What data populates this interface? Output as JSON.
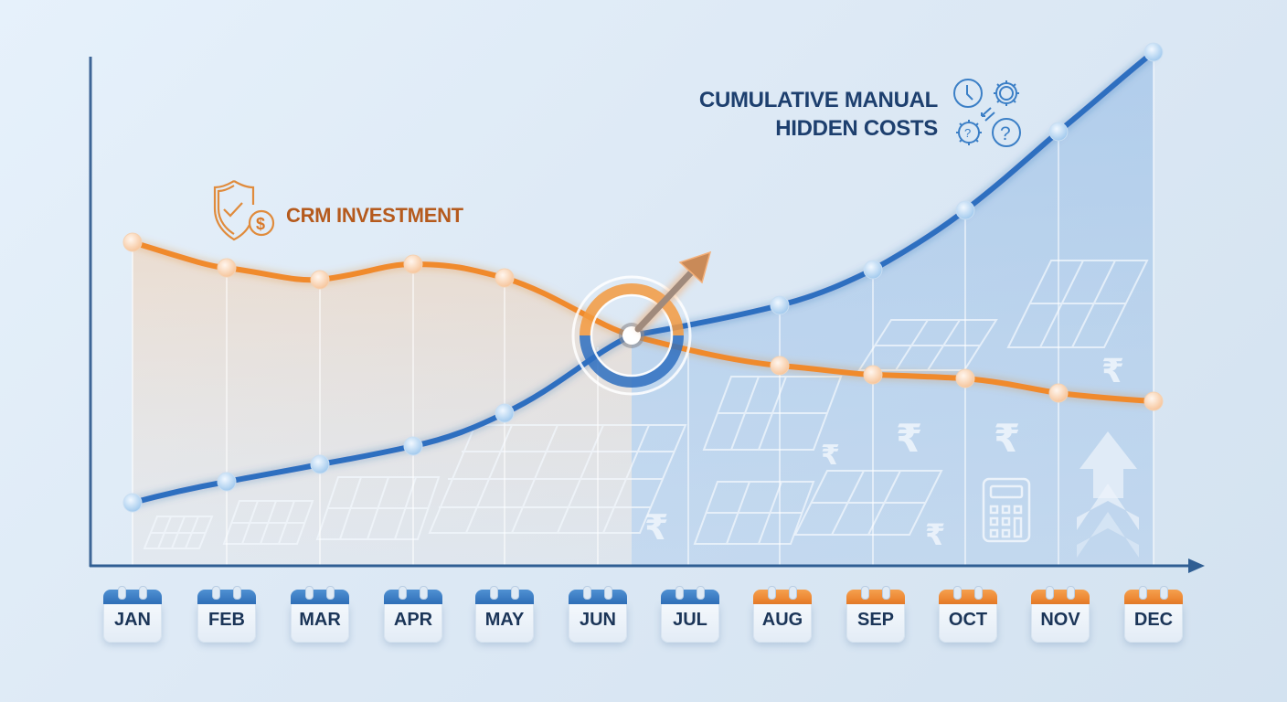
{
  "chart_data": {
    "type": "line",
    "title": "",
    "xlabel": "",
    "ylabel": "",
    "categories": [
      "JAN",
      "FEB",
      "MAR",
      "APR",
      "MAY",
      "JUN",
      "JUL",
      "AUG",
      "SEP",
      "OCT",
      "NOV",
      "DEC"
    ],
    "series": [
      {
        "name": "CRM INVESTMENT",
        "color": "#f08a2c",
        "values": [
          62,
          58,
          56,
          59,
          56,
          48,
          43,
          39,
          38,
          37,
          34,
          32
        ]
      },
      {
        "name": "CUMULATIVE MANUAL HIDDEN COSTS",
        "color": "#2e6fc0",
        "values": [
          12,
          16,
          19,
          23,
          30,
          37,
          45,
          50,
          57,
          70,
          86,
          102
        ]
      }
    ],
    "annotations": [
      "Break-even crossover between JUN and JUL marked with target rings and upward arrow"
    ],
    "grid": "vertical lines at each month",
    "legend_position": "inline labels",
    "ylim": [
      0,
      105
    ],
    "axis_ticks_y": "none"
  },
  "labels": {
    "hidden_costs_line1": "CUMULATIVE MANUAL",
    "hidden_costs_line2": "HIDDEN COSTS",
    "crm": "CRM INVESTMENT"
  },
  "months": [
    {
      "label": "JAN",
      "color": "blue"
    },
    {
      "label": "FEB",
      "color": "blue"
    },
    {
      "label": "MAR",
      "color": "blue"
    },
    {
      "label": "APR",
      "color": "blue"
    },
    {
      "label": "MAY",
      "color": "blue"
    },
    {
      "label": "JUN",
      "color": "blue"
    },
    {
      "label": "JUL",
      "color": "blue"
    },
    {
      "label": "AUG",
      "color": "orange"
    },
    {
      "label": "SEP",
      "color": "orange"
    },
    {
      "label": "OCT",
      "color": "orange"
    },
    {
      "label": "NOV",
      "color": "orange"
    },
    {
      "label": "DEC",
      "color": "orange"
    }
  ],
  "icons": [
    "shield-check-dollar-icon",
    "clock-icon",
    "gear-icon",
    "gear-question-icon",
    "question-circle-icon",
    "solar-panel-icon",
    "rupee-icon",
    "calculator-icon",
    "up-arrow-chevrons-icon",
    "calendar-icon"
  ],
  "colors": {
    "orange": "#f08a2c",
    "blue": "#2e6fc0",
    "axis": "#3d6596",
    "label_blue": "#1d3f6e",
    "label_orange": "#b55a1d"
  }
}
